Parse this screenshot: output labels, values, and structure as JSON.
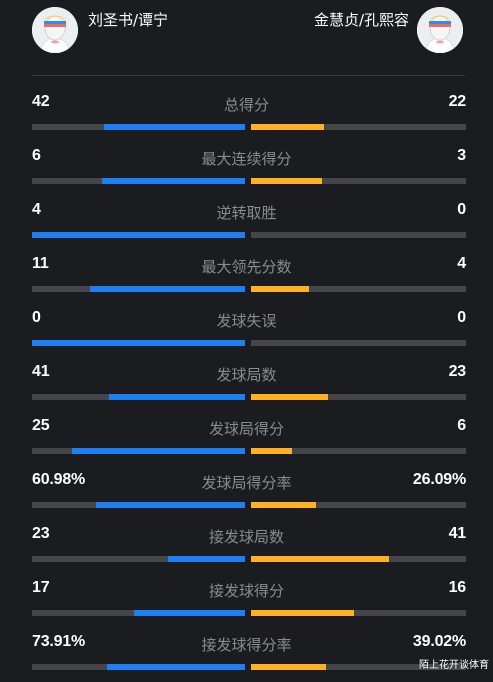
{
  "players": {
    "left": {
      "name": "刘圣书/谭宁"
    },
    "right": {
      "name": "金慧贞/孔熙容"
    }
  },
  "colors": {
    "left_bar": "#1e7ff2",
    "right_bar": "#ffb122",
    "track": "#45464b"
  },
  "stats": [
    {
      "label": "总得分",
      "left": "42",
      "right": "22",
      "left_share": 0.66,
      "right_share": 0.34
    },
    {
      "label": "最大连续得分",
      "left": "6",
      "right": "3",
      "left_share": 0.67,
      "right_share": 0.33
    },
    {
      "label": "逆转取胜",
      "left": "4",
      "right": "0",
      "left_share": 1.0,
      "right_share": 0.0
    },
    {
      "label": "最大领先分数",
      "left": "11",
      "right": "4",
      "left_share": 0.73,
      "right_share": 0.27
    },
    {
      "label": "发球失误",
      "left": "0",
      "right": "0",
      "left_share": 1.0,
      "right_share": 0.0
    },
    {
      "label": "发球局数",
      "left": "41",
      "right": "23",
      "left_share": 0.64,
      "right_share": 0.36
    },
    {
      "label": "发球局得分",
      "left": "25",
      "right": "6",
      "left_share": 0.81,
      "right_share": 0.19
    },
    {
      "label": "发球局得分率",
      "left": "60.98%",
      "right": "26.09%",
      "left_share": 0.7,
      "right_share": 0.3
    },
    {
      "label": "接发球局数",
      "left": "23",
      "right": "41",
      "left_share": 0.36,
      "right_share": 0.64
    },
    {
      "label": "接发球得分",
      "left": "17",
      "right": "16",
      "left_share": 0.52,
      "right_share": 0.48
    },
    {
      "label": "接发球得分率",
      "left": "73.91%",
      "right": "39.02%",
      "left_share": 0.65,
      "right_share": 0.35
    }
  ],
  "watermark": "陌上花开谈体育"
}
